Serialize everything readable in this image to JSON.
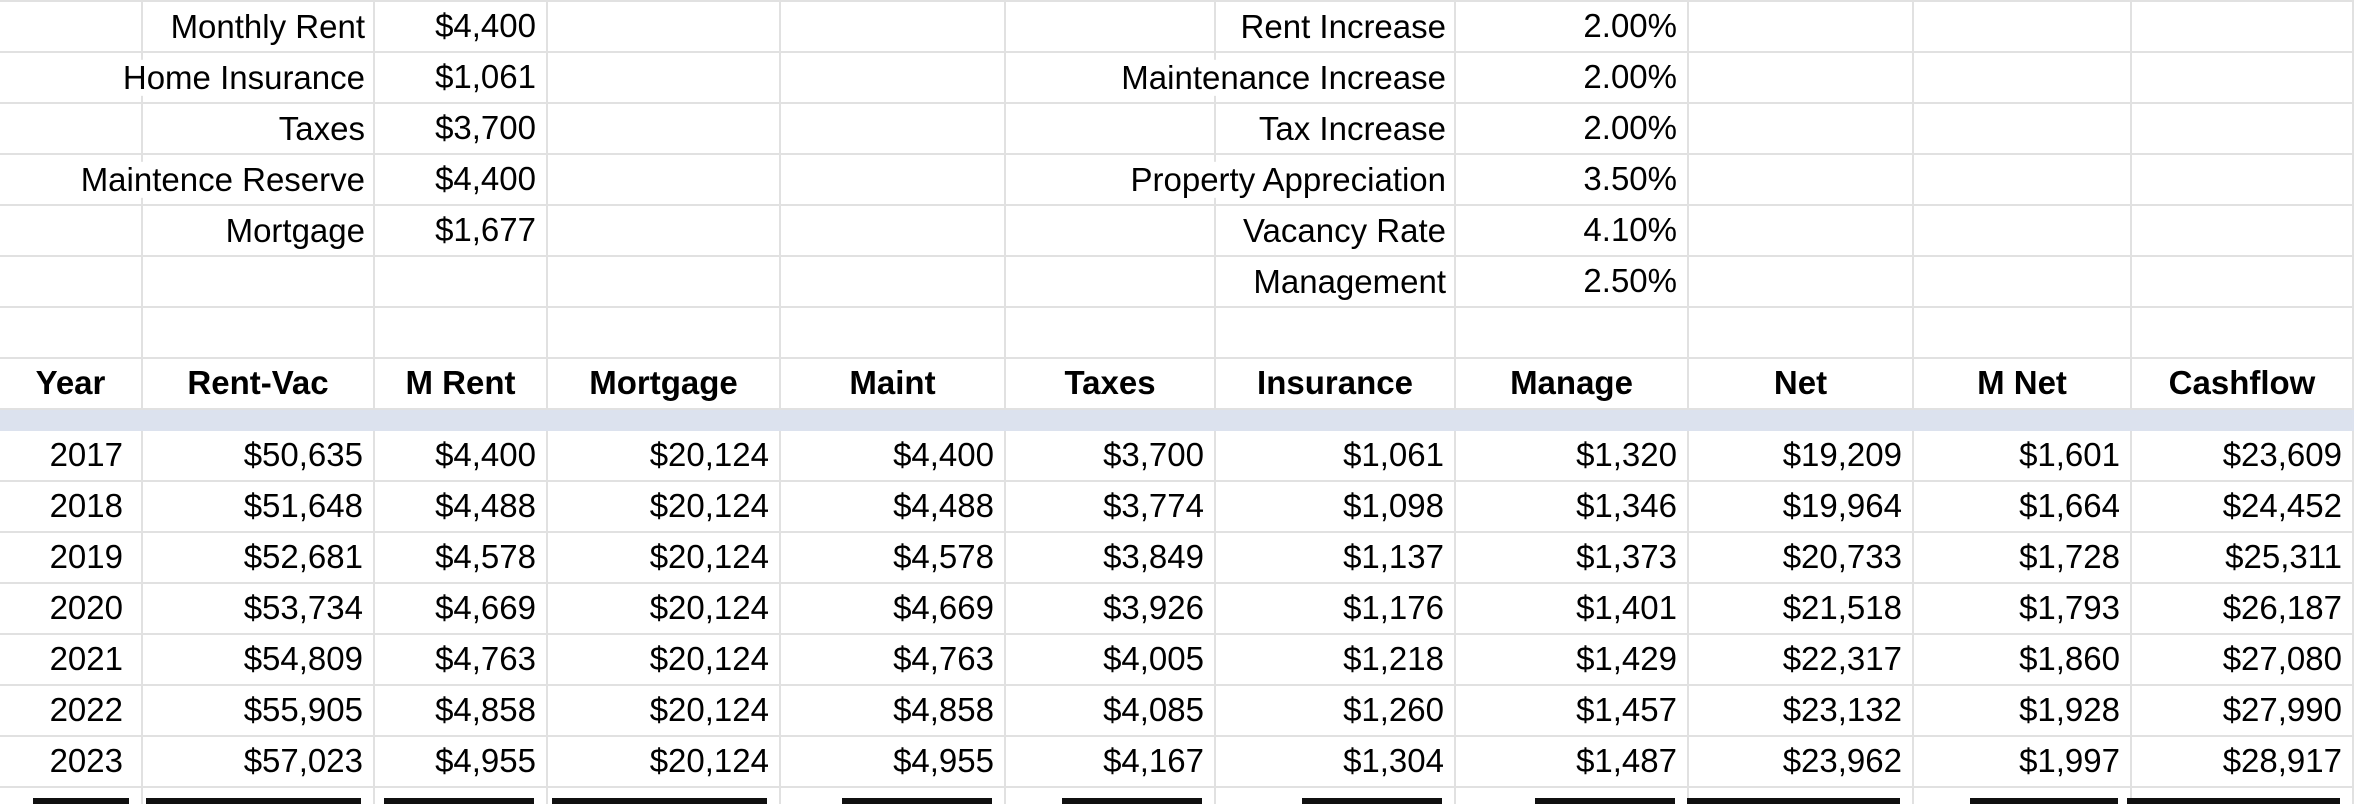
{
  "inputs_left": [
    {
      "label": "Monthly Rent",
      "value": "$4,400"
    },
    {
      "label": "Home Insurance",
      "value": "$1,061"
    },
    {
      "label": "Taxes",
      "value": "$3,700"
    },
    {
      "label": "Maintence Reserve",
      "value": "$4,400"
    },
    {
      "label": "Mortgage",
      "value": "$1,677"
    }
  ],
  "inputs_right": [
    {
      "label": "Rent Increase",
      "value": "2.00%"
    },
    {
      "label": "Maintenance Increase",
      "value": "2.00%"
    },
    {
      "label": "Tax Increase",
      "value": "2.00%"
    },
    {
      "label": "Property Appreciation",
      "value": "3.50%"
    },
    {
      "label": "Vacancy Rate",
      "value": "4.10%"
    },
    {
      "label": "Management",
      "value": "2.50%"
    }
  ],
  "table": {
    "headers": [
      "Year",
      "Rent-Vac",
      "M Rent",
      "Mortgage",
      "Maint",
      "Taxes",
      "Insurance",
      "Manage",
      "Net",
      "M Net",
      "Cashflow"
    ],
    "rows": [
      [
        "2017",
        "$50,635",
        "$4,400",
        "$20,124",
        "$4,400",
        "$3,700",
        "$1,061",
        "$1,320",
        "$19,209",
        "$1,601",
        "$23,609"
      ],
      [
        "2018",
        "$51,648",
        "$4,488",
        "$20,124",
        "$4,488",
        "$3,774",
        "$1,098",
        "$1,346",
        "$19,964",
        "$1,664",
        "$24,452"
      ],
      [
        "2019",
        "$52,681",
        "$4,578",
        "$20,124",
        "$4,578",
        "$3,849",
        "$1,137",
        "$1,373",
        "$20,733",
        "$1,728",
        "$25,311"
      ],
      [
        "2020",
        "$53,734",
        "$4,669",
        "$20,124",
        "$4,669",
        "$3,926",
        "$1,176",
        "$1,401",
        "$21,518",
        "$1,793",
        "$26,187"
      ],
      [
        "2021",
        "$54,809",
        "$4,763",
        "$20,124",
        "$4,763",
        "$4,005",
        "$1,218",
        "$1,429",
        "$22,317",
        "$1,860",
        "$27,080"
      ],
      [
        "2022",
        "$55,905",
        "$4,858",
        "$20,124",
        "$4,858",
        "$4,085",
        "$1,260",
        "$1,457",
        "$23,132",
        "$1,928",
        "$27,990"
      ],
      [
        "2023",
        "$57,023",
        "$4,955",
        "$20,124",
        "$4,955",
        "$4,167",
        "$1,304",
        "$1,487",
        "$23,962",
        "$1,997",
        "$28,917"
      ]
    ]
  },
  "clipped_next_row_visible": true,
  "colors": {
    "gridline": "#e1e1e1",
    "freeze_band": "#dce2ee",
    "text": "#000000",
    "background": "#ffffff"
  }
}
